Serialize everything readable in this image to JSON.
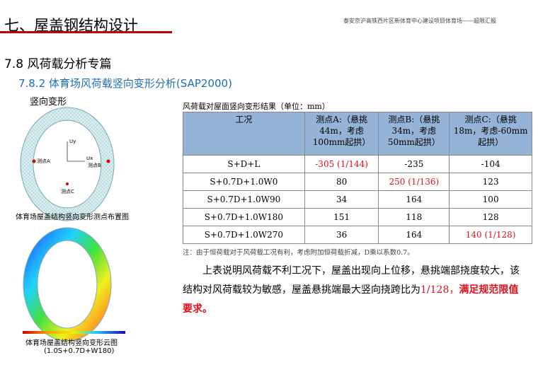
{
  "header": {
    "title": "七、屋盖钢结构设计",
    "project": "泰安京沪高铁西片区新体育中心建设项目体育场——超限汇报"
  },
  "section": "7.8 风荷载分析专篇",
  "subsection": "7.8.2 体育场风荷载竖向变形分析(SAP2000)",
  "subheading": "竖向变形",
  "figure1": {
    "labels": {
      "uy": "Uy",
      "ux": "Ux",
      "a": "测点A",
      "b": "测点B",
      "c": "测点C"
    },
    "caption": "体育场屋盖结构竖向变形测点布置图"
  },
  "figure2": {
    "caption": "体育场屋盖结构竖向变形云图",
    "case": "(1.0S+0.7D+W180)"
  },
  "table": {
    "title": "风荷载对屋面竖向变形结果（单位：mm）",
    "header": [
      "工况",
      "测点A:（悬挑44m，考虑100mm起拱）",
      "测点B:（悬挑34m，考虑50mm起拱）",
      "测点C:（悬挑18m，考虑-60mm起拱）"
    ],
    "rows": [
      [
        "S+D+L",
        "-305 (1/144)",
        "-235",
        "-104"
      ],
      [
        "S+0.7D+1.0W0",
        "80",
        "250 (1/136)",
        "123"
      ],
      [
        "S+0.7D+1.0W90",
        "34",
        "164",
        "100"
      ],
      [
        "S+0.7D+1.0W180",
        "151",
        "118",
        "128"
      ],
      [
        "S+0.7D+1.0W270",
        "36",
        "164",
        "140 (1/128)"
      ]
    ],
    "note": "注：由于恒荷载对于风荷载工况有利，考虑附加恒荷载折减，D乘以系数0.7。"
  },
  "paragraph": {
    "text": "上表说明风荷载不利工况下，屋盖出现向上位移，悬挑端部挠度较大，该结构对风荷载较为敏感，屋盖悬挑端最大竖向挠跨比为",
    "ratio": "1/128，",
    "conclusion": "满足规范限值要求。"
  }
}
